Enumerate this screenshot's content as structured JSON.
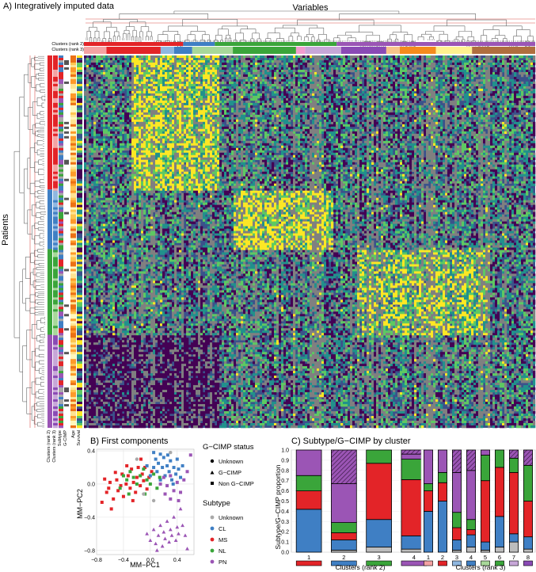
{
  "panels": {
    "a_title": "A) Integratively imputed data",
    "b_title": "B) First components",
    "c_title": "C) Subtype/G−CIMP by cluster"
  },
  "heatmap": {
    "top_label": "Variables",
    "left_label": "Patients",
    "col_track_labels": [
      "Clusters (rank 2)",
      "Clusters (rank 3)"
    ],
    "row_track_labels": [
      "Clusters (rank 2)",
      "Clusters (rank 3)",
      "Subtype",
      "G-CIMP",
      "Age",
      "Survival"
    ],
    "row_groups": [
      "#e32428",
      "#3f7fc4",
      "#3aa53a",
      "#9b55b5"
    ],
    "palette": [
      "#440154",
      "#3b528b",
      "#21918c",
      "#5ec962",
      "#fde725",
      "#808080"
    ],
    "col_groups_rank3": [
      {
        "color": "#f4a3a3",
        "w": 0.05
      },
      {
        "color": "#e32428",
        "w": 0.12
      },
      {
        "color": "#8fb7e0",
        "w": 0.03
      },
      {
        "color": "#3f7fc4",
        "w": 0.04
      },
      {
        "color": "#a8d89a",
        "w": 0.09
      },
      {
        "color": "#3aa53a",
        "w": 0.14
      },
      {
        "color": "#f39ccf",
        "w": 0.02
      },
      {
        "color": "#c7a7d8",
        "w": 0.08
      },
      {
        "color": "#8a4ab5",
        "w": 0.1
      },
      {
        "color": "#f8c48a",
        "w": 0.03
      },
      {
        "color": "#f58b1c",
        "w": 0.08
      },
      {
        "color": "#fff18f",
        "w": 0.08
      },
      {
        "color": "#b06e3e",
        "w": 0.14
      }
    ]
  },
  "chart_data": [
    {
      "type": "scatter",
      "title": "B) First components",
      "xlabel": "MM−PC1",
      "ylabel": "MM−PC2",
      "xlim": [
        -0.8,
        0.65
      ],
      "ylim": [
        -0.85,
        0.42
      ],
      "xticks": [
        "−0.8",
        "−0.4",
        "0.0",
        "0.4"
      ],
      "xtick_values": [
        -0.8,
        -0.4,
        0.0,
        0.4
      ],
      "yticks": [
        "−0.8",
        "−0.4",
        "0.0",
        "0.4"
      ],
      "ytick_values": [
        -0.8,
        -0.4,
        0.0,
        0.4
      ],
      "legend_gcimp": {
        "title": "G−CIMP status",
        "items": [
          {
            "label": "Unknown",
            "shape": "circle"
          },
          {
            "label": "G−CIMP",
            "shape": "triangle"
          },
          {
            "label": "Non G−CIMP",
            "shape": "square"
          }
        ]
      },
      "legend_subtype": {
        "title": "Subtype",
        "items": [
          {
            "label": "Unknown",
            "color": "#a9a9a9"
          },
          {
            "label": "CL",
            "color": "#3f7fc4"
          },
          {
            "label": "MS",
            "color": "#e32428"
          },
          {
            "label": "NL",
            "color": "#3aa53a"
          },
          {
            "label": "PN",
            "color": "#9b55b5"
          }
        ]
      },
      "series": [
        {
          "subtype": "MS",
          "shape": "square",
          "points": [
            [
              -0.72,
              -0.22
            ],
            [
              -0.65,
              -0.1
            ],
            [
              -0.6,
              0.02
            ],
            [
              -0.55,
              -0.18
            ],
            [
              -0.5,
              0.05
            ],
            [
              -0.48,
              -0.08
            ],
            [
              -0.42,
              0.12
            ],
            [
              -0.4,
              -0.15
            ],
            [
              -0.36,
              0.0
            ],
            [
              -0.33,
              0.1
            ],
            [
              -0.3,
              -0.05
            ],
            [
              -0.28,
              0.18
            ],
            [
              -0.25,
              0.02
            ],
            [
              -0.22,
              -0.1
            ],
            [
              -0.2,
              0.08
            ],
            [
              -0.18,
              0.2
            ],
            [
              -0.15,
              -0.02
            ],
            [
              -0.12,
              0.12
            ],
            [
              -0.1,
              0.04
            ],
            [
              -0.08,
              0.2
            ],
            [
              -0.05,
              -0.06
            ],
            [
              -0.02,
              0.08
            ],
            [
              0.02,
              0.15
            ],
            [
              -0.68,
              0.06
            ],
            [
              -0.58,
              -0.3
            ],
            [
              -0.44,
              -0.02
            ],
            [
              -0.35,
              0.22
            ],
            [
              -0.26,
              -0.2
            ],
            [
              -0.14,
              0.3
            ],
            [
              -0.62,
              -0.05
            ],
            [
              -0.52,
              0.14
            ]
          ]
        },
        {
          "subtype": "CL",
          "shape": "square",
          "points": [
            [
              0.0,
              0.1
            ],
            [
              0.05,
              0.2
            ],
            [
              0.08,
              0.3
            ],
            [
              0.1,
              0.15
            ],
            [
              0.12,
              0.25
            ],
            [
              0.15,
              0.05
            ],
            [
              0.18,
              0.2
            ],
            [
              0.2,
              0.32
            ],
            [
              0.22,
              0.1
            ],
            [
              0.25,
              0.22
            ],
            [
              0.28,
              0.15
            ],
            [
              0.3,
              0.28
            ],
            [
              0.32,
              0.05
            ],
            [
              0.35,
              0.2
            ],
            [
              0.38,
              0.12
            ],
            [
              0.4,
              0.3
            ],
            [
              0.42,
              0.18
            ],
            [
              0.45,
              0.08
            ],
            [
              0.05,
              0.38
            ],
            [
              0.15,
              0.36
            ],
            [
              0.26,
              0.35
            ],
            [
              0.34,
              0.0
            ],
            [
              0.48,
              0.22
            ],
            [
              -0.05,
              0.22
            ]
          ]
        },
        {
          "subtype": "NL",
          "shape": "square",
          "points": [
            [
              -0.4,
              0.1
            ],
            [
              -0.35,
              0.05
            ],
            [
              -0.3,
              0.15
            ],
            [
              -0.25,
              0.08
            ],
            [
              -0.2,
              0.0
            ],
            [
              -0.15,
              0.1
            ],
            [
              -0.1,
              0.18
            ],
            [
              -0.05,
              0.05
            ],
            [
              0.0,
              0.0
            ],
            [
              0.05,
              0.12
            ],
            [
              0.1,
              -0.05
            ],
            [
              -0.45,
              -0.05
            ],
            [
              -0.32,
              -0.12
            ],
            [
              -0.08,
              -0.12
            ],
            [
              0.14,
              0.08
            ]
          ]
        },
        {
          "subtype": "PN",
          "shape": "square",
          "points": [
            [
              0.15,
              0.0
            ],
            [
              0.2,
              0.08
            ],
            [
              0.25,
              -0.02
            ],
            [
              0.3,
              0.1
            ],
            [
              0.35,
              -0.08
            ],
            [
              0.4,
              0.02
            ],
            [
              0.45,
              -0.1
            ],
            [
              0.5,
              0.05
            ],
            [
              0.55,
              0.15
            ],
            [
              0.3,
              -0.18
            ],
            [
              0.22,
              -0.12
            ],
            [
              0.42,
              -0.2
            ],
            [
              0.6,
              0.35
            ]
          ]
        },
        {
          "subtype": "PN",
          "shape": "triangle",
          "points": [
            [
              -0.05,
              -0.6
            ],
            [
              0.0,
              -0.68
            ],
            [
              0.05,
              -0.55
            ],
            [
              0.08,
              -0.72
            ],
            [
              0.12,
              -0.62
            ],
            [
              0.15,
              -0.5
            ],
            [
              0.18,
              -0.75
            ],
            [
              0.2,
              -0.58
            ],
            [
              0.22,
              -0.66
            ],
            [
              0.25,
              -0.45
            ],
            [
              0.28,
              -0.7
            ],
            [
              0.3,
              -0.55
            ],
            [
              0.32,
              -0.62
            ],
            [
              0.35,
              -0.4
            ],
            [
              0.38,
              -0.68
            ],
            [
              0.4,
              -0.52
            ],
            [
              0.42,
              -0.6
            ],
            [
              0.45,
              -0.3
            ],
            [
              0.48,
              -0.5
            ],
            [
              0.52,
              -0.62
            ],
            [
              0.55,
              -0.78
            ],
            [
              0.1,
              -0.8
            ]
          ]
        },
        {
          "subtype": "Unknown",
          "shape": "circle",
          "points": [
            [
              -0.1,
              -0.12
            ],
            [
              0.05,
              -0.2
            ],
            [
              0.3,
              0.38
            ],
            [
              -0.2,
              0.3
            ]
          ]
        }
      ]
    },
    {
      "type": "bar",
      "title": "C) Subtype/G−CIMP by cluster",
      "ylabel": "Subtype/G−CIMP proportion",
      "ylim": [
        0,
        1
      ],
      "yticks": [
        "0.0",
        "0.1",
        "0.2",
        "0.3",
        "0.4",
        "0.5",
        "0.6",
        "0.7",
        "0.8",
        "0.9",
        "1.0"
      ],
      "stack_order": [
        "Unknown",
        "CL",
        "MS",
        "NL",
        "PN",
        "G−CIMP"
      ],
      "stack_colors": [
        "#bdbdbd",
        "#3f7fc4",
        "#e32428",
        "#3aa53a",
        "#9b55b5",
        "#9b55b5"
      ],
      "groups": [
        {
          "xlabel": "Clusters (rank 2)",
          "categories": [
            "1",
            "2",
            "3",
            "4"
          ],
          "cluster_colors": [
            "#e32428",
            "#3f7fc4",
            "#3aa53a",
            "#9b55b5"
          ],
          "values": [
            [
              0.0,
              0.42,
              0.18,
              0.15,
              0.25,
              0.0
            ],
            [
              0.02,
              0.1,
              0.07,
              0.1,
              0.38,
              0.33
            ],
            [
              0.05,
              0.27,
              0.55,
              0.13,
              0.0,
              0.0
            ],
            [
              0.03,
              0.13,
              0.55,
              0.2,
              0.05,
              0.04
            ]
          ]
        },
        {
          "xlabel": "Clusters (rank 3)",
          "categories": [
            "1",
            "2",
            "3",
            "4",
            "5",
            "6",
            "7",
            "8"
          ],
          "cluster_colors": [
            "#f4a3a3",
            "#e32428",
            "#8fb7e0",
            "#3f7fc4",
            "#a8d89a",
            "#3aa53a",
            "#c7a7d8",
            "#8a4ab5"
          ],
          "values": [
            [
              0.0,
              0.4,
              0.2,
              0.07,
              0.33,
              0.0
            ],
            [
              0.0,
              0.5,
              0.18,
              0.1,
              0.22,
              0.0
            ],
            [
              0.02,
              0.1,
              0.12,
              0.15,
              0.39,
              0.22
            ],
            [
              0.05,
              0.12,
              0.05,
              0.1,
              0.48,
              0.2
            ],
            [
              0.02,
              0.08,
              0.6,
              0.25,
              0.05,
              0.0
            ],
            [
              0.05,
              0.3,
              0.48,
              0.17,
              0.0,
              0.0
            ],
            [
              0.1,
              0.08,
              0.6,
              0.14,
              0.0,
              0.08
            ],
            [
              0.03,
              0.12,
              0.35,
              0.35,
              0.0,
              0.15
            ]
          ]
        }
      ]
    }
  ]
}
